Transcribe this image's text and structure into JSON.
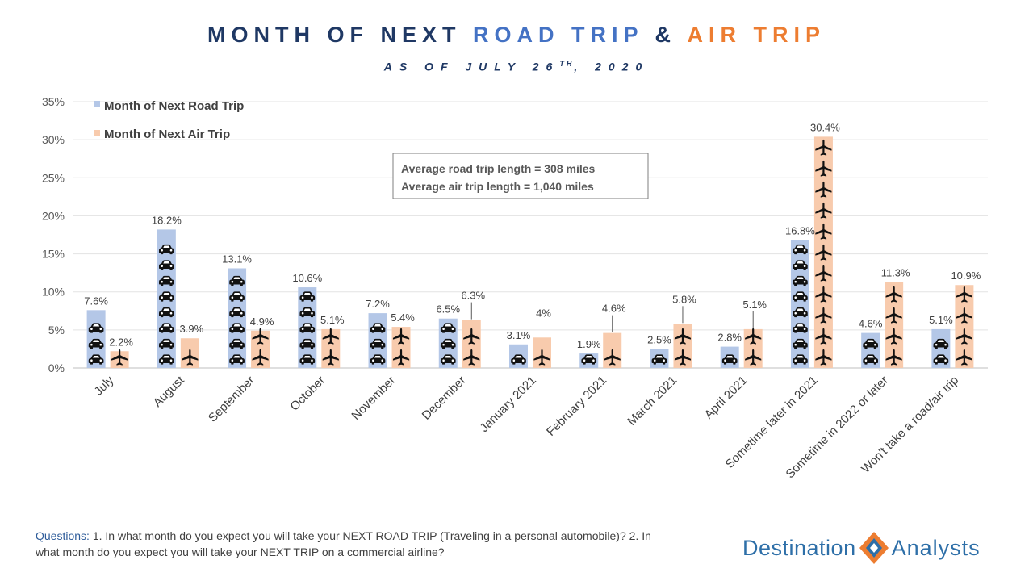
{
  "header": {
    "title_part1": "MONTH OF NEXT ",
    "title_road": "ROAD TRIP",
    "title_amp": " & ",
    "title_air": "AIR TRIP",
    "subtitle_pre": "AS OF JULY 26",
    "subtitle_sup": "TH",
    "subtitle_post": ", 2020"
  },
  "note_box": {
    "line1": "Average road trip length  = 308 miles",
    "line2": "Average air trip length = 1,040 miles"
  },
  "footer": {
    "question_label": "Questions:",
    "question_text": " 1. In what month do you expect you will take your NEXT ROAD TRIP (Traveling in a personal automobile)? 2. In what month do you expect you will take your NEXT TRIP on a commercial airline?",
    "logo_word1": "Destination",
    "logo_word2": "Analysts"
  },
  "colors": {
    "road": "#b4c7e7",
    "air": "#f8cbad",
    "title_dark": "#1f3864",
    "title_road": "#4472c4",
    "title_air": "#ed7d31",
    "icon": "#111111",
    "logo_orange": "#ed7d31",
    "logo_blue": "#2e6fa8"
  },
  "chart_data": {
    "type": "bar",
    "categories": [
      "July",
      "August",
      "September",
      "October",
      "November",
      "December",
      "January 2021",
      "February 2021",
      "March 2021",
      "April 2021",
      "Sometime later in 2021",
      "Sometime in 2022 or later",
      "Won't take a road/air trip"
    ],
    "series": [
      {
        "name": "Month of Next Road Trip",
        "icon": "car-icon",
        "values": [
          7.6,
          18.2,
          13.1,
          10.6,
          7.2,
          6.5,
          3.1,
          1.9,
          2.5,
          2.8,
          16.8,
          4.6,
          5.1
        ]
      },
      {
        "name": "Month of Next Air Trip",
        "icon": "airplane-icon",
        "values": [
          2.2,
          3.9,
          4.9,
          5.1,
          5.4,
          6.3,
          4.0,
          4.6,
          5.8,
          5.1,
          30.4,
          11.3,
          10.9
        ]
      }
    ],
    "value_suffix": "%",
    "ylim": [
      0,
      35
    ],
    "yticks": [
      0,
      5,
      10,
      15,
      20,
      25,
      30,
      35
    ],
    "ytick_labels": [
      "0%",
      "5%",
      "10%",
      "15%",
      "20%",
      "25%",
      "30%",
      "35%"
    ],
    "grid": true,
    "legend_position": "top-left"
  }
}
